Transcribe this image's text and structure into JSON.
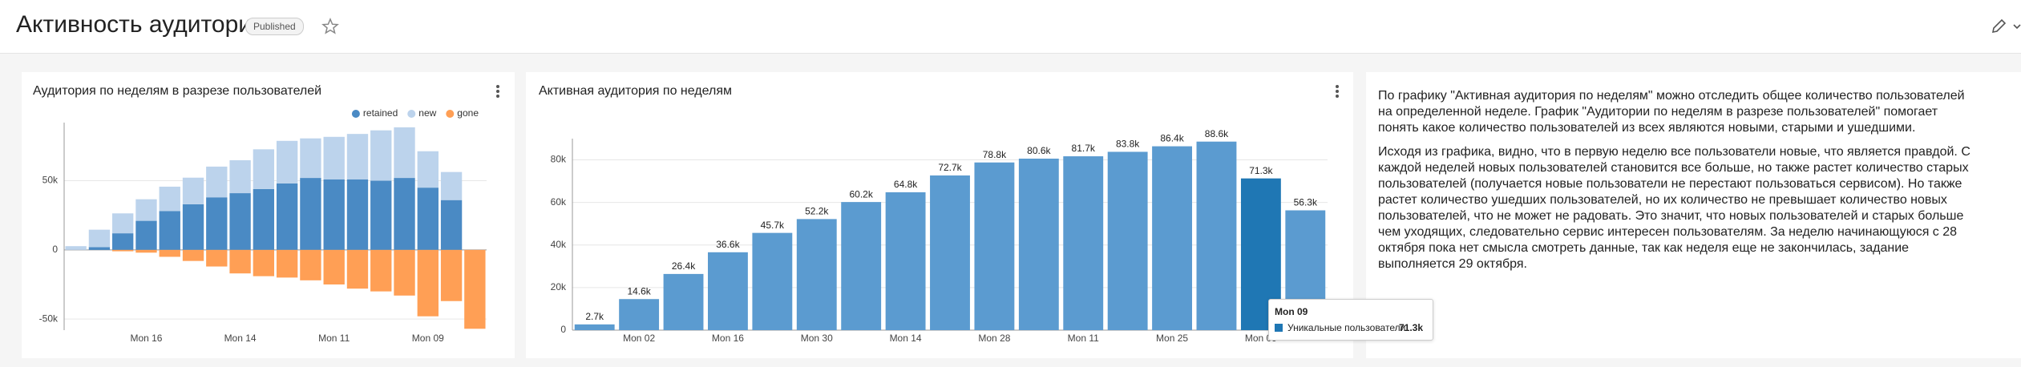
{
  "header": {
    "title": "Активность аудитории",
    "badge": "Published"
  },
  "chart_data": [
    {
      "type": "stacked-bar",
      "title": "Аудитория по неделям в разрезе пользователей",
      "categories": [
        null,
        null,
        null,
        "Mon 16",
        null,
        null,
        null,
        "Mon 14",
        null,
        null,
        null,
        "Mon 11",
        null,
        null,
        null,
        "Mon 09",
        null,
        null
      ],
      "series": [
        {
          "name": "retained",
          "color": "#4a8ac4",
          "values": [
            0,
            2000,
            12000,
            21000,
            28000,
            33000,
            38000,
            41000,
            44000,
            48000,
            52000,
            51000,
            51000,
            50000,
            52000,
            45000,
            36000,
            0
          ]
        },
        {
          "name": "new",
          "color": "#bcd3ec",
          "values": [
            2700,
            12600,
            14400,
            15600,
            17700,
            19200,
            22200,
            23800,
            28700,
            30800,
            28600,
            30700,
            32800,
            36400,
            36600,
            26300,
            20300,
            0
          ]
        },
        {
          "name": "gone",
          "color": "#ff9f55",
          "values": [
            0,
            0,
            -1000,
            -2000,
            -5000,
            -8000,
            -12000,
            -17000,
            -19000,
            -20000,
            -22000,
            -25000,
            -28000,
            -30000,
            -33000,
            -48000,
            -37000,
            -57000
          ]
        }
      ],
      "ylim": [
        -58000,
        92000
      ],
      "yticks": [
        {
          "value": -50000,
          "label": "-50k"
        },
        0,
        {
          "value": 50000,
          "label": "50k"
        }
      ],
      "grid": true,
      "legend": "top-right"
    },
    {
      "type": "bar",
      "title": "Активная аудитория по неделям",
      "categories": [
        null,
        "Mon 02",
        null,
        "Mon 16",
        null,
        "Mon 30",
        null,
        "Mon 14",
        null,
        "Mon 28",
        null,
        "Mon 11",
        null,
        "Mon 25",
        null,
        "Mon 09",
        null
      ],
      "series_name": "Уникальные пользователи",
      "values": [
        2700,
        14600,
        26400,
        36600,
        45700,
        52200,
        60200,
        64800,
        72700,
        78800,
        80600,
        81700,
        83800,
        86400,
        88600,
        71300,
        56300
      ],
      "value_labels": [
        "2.7k",
        "14.6k",
        "26.4k",
        "36.6k",
        "45.7k",
        "52.2k",
        "60.2k",
        "64.8k",
        "72.7k",
        "78.8k",
        "80.6k",
        "81.7k",
        "83.8k",
        "86.4k",
        "88.6k",
        "71.3k",
        "56.3k"
      ],
      "color": "#5b9bd0",
      "highlight_color": "#1f77b4",
      "tooltip_index": 15,
      "ylim": [
        0,
        90000
      ],
      "yticks": [
        0,
        {
          "value": 20000,
          "label": "20k"
        },
        {
          "value": 40000,
          "label": "40k"
        },
        {
          "value": 60000,
          "label": "60k"
        },
        {
          "value": 80000,
          "label": "80k"
        }
      ],
      "grid": true
    }
  ],
  "text": {
    "paragraphs": [
      "По графику \"Активная аудитория по неделям\" можно отследить общее количество пользователей на определенной неделе. График \"Аудитории по неделям в разрезе пользователей\" помогает понять какое количество пользователей из всех являются новыми, старыми и ушедшими.",
      "Исходя из графика, видно, что в первую неделю все пользователи новые, что является правдой. С каждой неделей новых пользователей становится все больше, но также растет количество старых пользователей (получается новые пользователи не перестают пользоваться сервисом). Но также растет количество ушедших пользователей, но их количество не превышает количество новых пользователей, что не может не радовать. Это значит, что новых пользователей и старых больше чем уходящих, следовательно сервис интересен пользователям. За неделю начинающуюся с 28 октября пока нет смысла смотреть данные, так как неделя еще не закончилась, задание выполняется 29 октября."
    ]
  }
}
